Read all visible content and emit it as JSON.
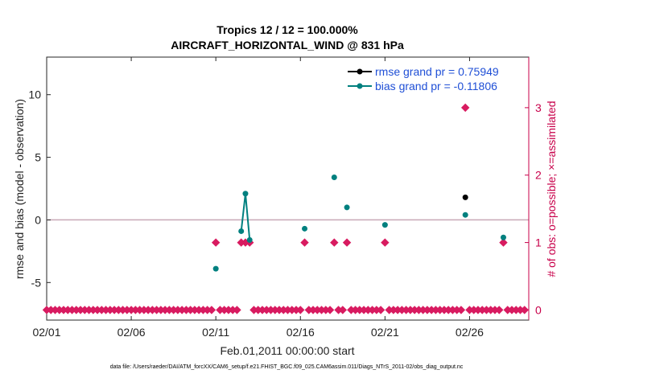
{
  "chart_data": {
    "type": "scatter",
    "title_line1": "Tropics 12 / 12 = 100.000%",
    "title_line2": "AIRCRAFT_HORIZONTAL_WIND @ 831 hPa",
    "xlabel": "Feb.01,2011 00:00:00 start",
    "ylabel": "rmse and bias (model - observation)",
    "ylabel_right": "# of obs: o=possible; ×=assimilated",
    "footnote": "data file: /Users/raeder/DAI/ATM_forcXX/CAM6_setup/f.e21.FHIST_BGC.f09_025.CAM6assim.011/Diags_NTrS_2011-02/obs_diag_output.nc",
    "xlim": [
      1,
      29.5
    ],
    "ylim": [
      -8,
      13
    ],
    "ylim_right": [
      -0.15,
      3.75
    ],
    "x_ticks": [
      1,
      6,
      11,
      16,
      21,
      26
    ],
    "x_tick_labels": [
      "02/01",
      "02/06",
      "02/11",
      "02/16",
      "02/21",
      "02/26"
    ],
    "y_ticks": [
      -5,
      0,
      5,
      10
    ],
    "y_tick_labels": [
      "-5",
      "0",
      "5",
      "10"
    ],
    "y_right_ticks": [
      0,
      1,
      2,
      3
    ],
    "y_right_tick_labels": [
      "0",
      "1",
      "2",
      "3"
    ],
    "zero_line": 0,
    "series": [
      {
        "name": "rmse grand pr = 0.75949",
        "color": "#000000",
        "x": [
          25.75
        ],
        "y": [
          1.8
        ]
      },
      {
        "name": "bias grand pr = -0.11806",
        "color": "#00807f",
        "x": [
          11.0,
          12.5,
          12.75,
          13.0,
          16.25,
          18.0,
          18.75,
          21.0,
          25.75,
          28.0
        ],
        "y": [
          -3.9,
          -0.9,
          2.1,
          -1.6,
          -0.7,
          3.4,
          1.0,
          -0.4,
          0.4,
          -1.4
        ],
        "connected_segments": [
          [
            1,
            2,
            3
          ]
        ]
      },
      {
        "name": "# of obs assimilated",
        "color": "#d81b60",
        "axis": "right",
        "x": [
          1.0,
          1.25,
          1.5,
          1.75,
          2.0,
          2.25,
          2.5,
          2.75,
          3.0,
          3.25,
          3.5,
          3.75,
          4.0,
          4.25,
          4.5,
          4.75,
          5.0,
          5.25,
          5.5,
          5.75,
          6.0,
          6.25,
          6.5,
          6.75,
          7.0,
          7.25,
          7.5,
          7.75,
          8.0,
          8.25,
          8.5,
          8.75,
          9.0,
          9.25,
          9.5,
          9.75,
          10.0,
          10.25,
          10.5,
          10.75,
          11.0,
          11.25,
          11.5,
          11.75,
          12.0,
          12.25,
          12.5,
          12.75,
          13.0,
          13.25,
          13.5,
          13.75,
          14.0,
          14.25,
          14.5,
          14.75,
          15.0,
          15.25,
          15.5,
          15.75,
          16.0,
          16.25,
          16.5,
          16.75,
          17.0,
          17.25,
          17.5,
          17.75,
          18.0,
          18.25,
          18.5,
          18.75,
          19.0,
          19.25,
          19.5,
          19.75,
          20.0,
          20.25,
          20.5,
          20.75,
          21.0,
          21.25,
          21.5,
          21.75,
          22.0,
          22.25,
          22.5,
          22.75,
          23.0,
          23.25,
          23.5,
          23.75,
          24.0,
          24.25,
          24.5,
          24.75,
          25.0,
          25.25,
          25.5,
          25.75,
          26.0,
          26.25,
          26.5,
          26.75,
          27.0,
          27.25,
          27.5,
          27.75,
          28.0,
          28.25,
          28.5,
          28.75,
          29.0,
          29.25
        ],
        "y": [
          0,
          0,
          0,
          0,
          0,
          0,
          0,
          0,
          0,
          0,
          0,
          0,
          0,
          0,
          0,
          0,
          0,
          0,
          0,
          0,
          0,
          0,
          0,
          0,
          0,
          0,
          0,
          0,
          0,
          0,
          0,
          0,
          0,
          0,
          0,
          0,
          0,
          0,
          0,
          0,
          1,
          0,
          0,
          0,
          0,
          0,
          1,
          1,
          1,
          0,
          0,
          0,
          0,
          0,
          0,
          0,
          0,
          0,
          0,
          0,
          0,
          1,
          0,
          0,
          0,
          0,
          0,
          0,
          1,
          0,
          0,
          1,
          0,
          0,
          0,
          0,
          0,
          0,
          0,
          0,
          1,
          0,
          0,
          0,
          0,
          0,
          0,
          0,
          0,
          0,
          0,
          0,
          0,
          0,
          0,
          0,
          0,
          0,
          0,
          3,
          0,
          0,
          0,
          0,
          0,
          0,
          0,
          0,
          1,
          0,
          0,
          0,
          0,
          0
        ]
      }
    ]
  }
}
